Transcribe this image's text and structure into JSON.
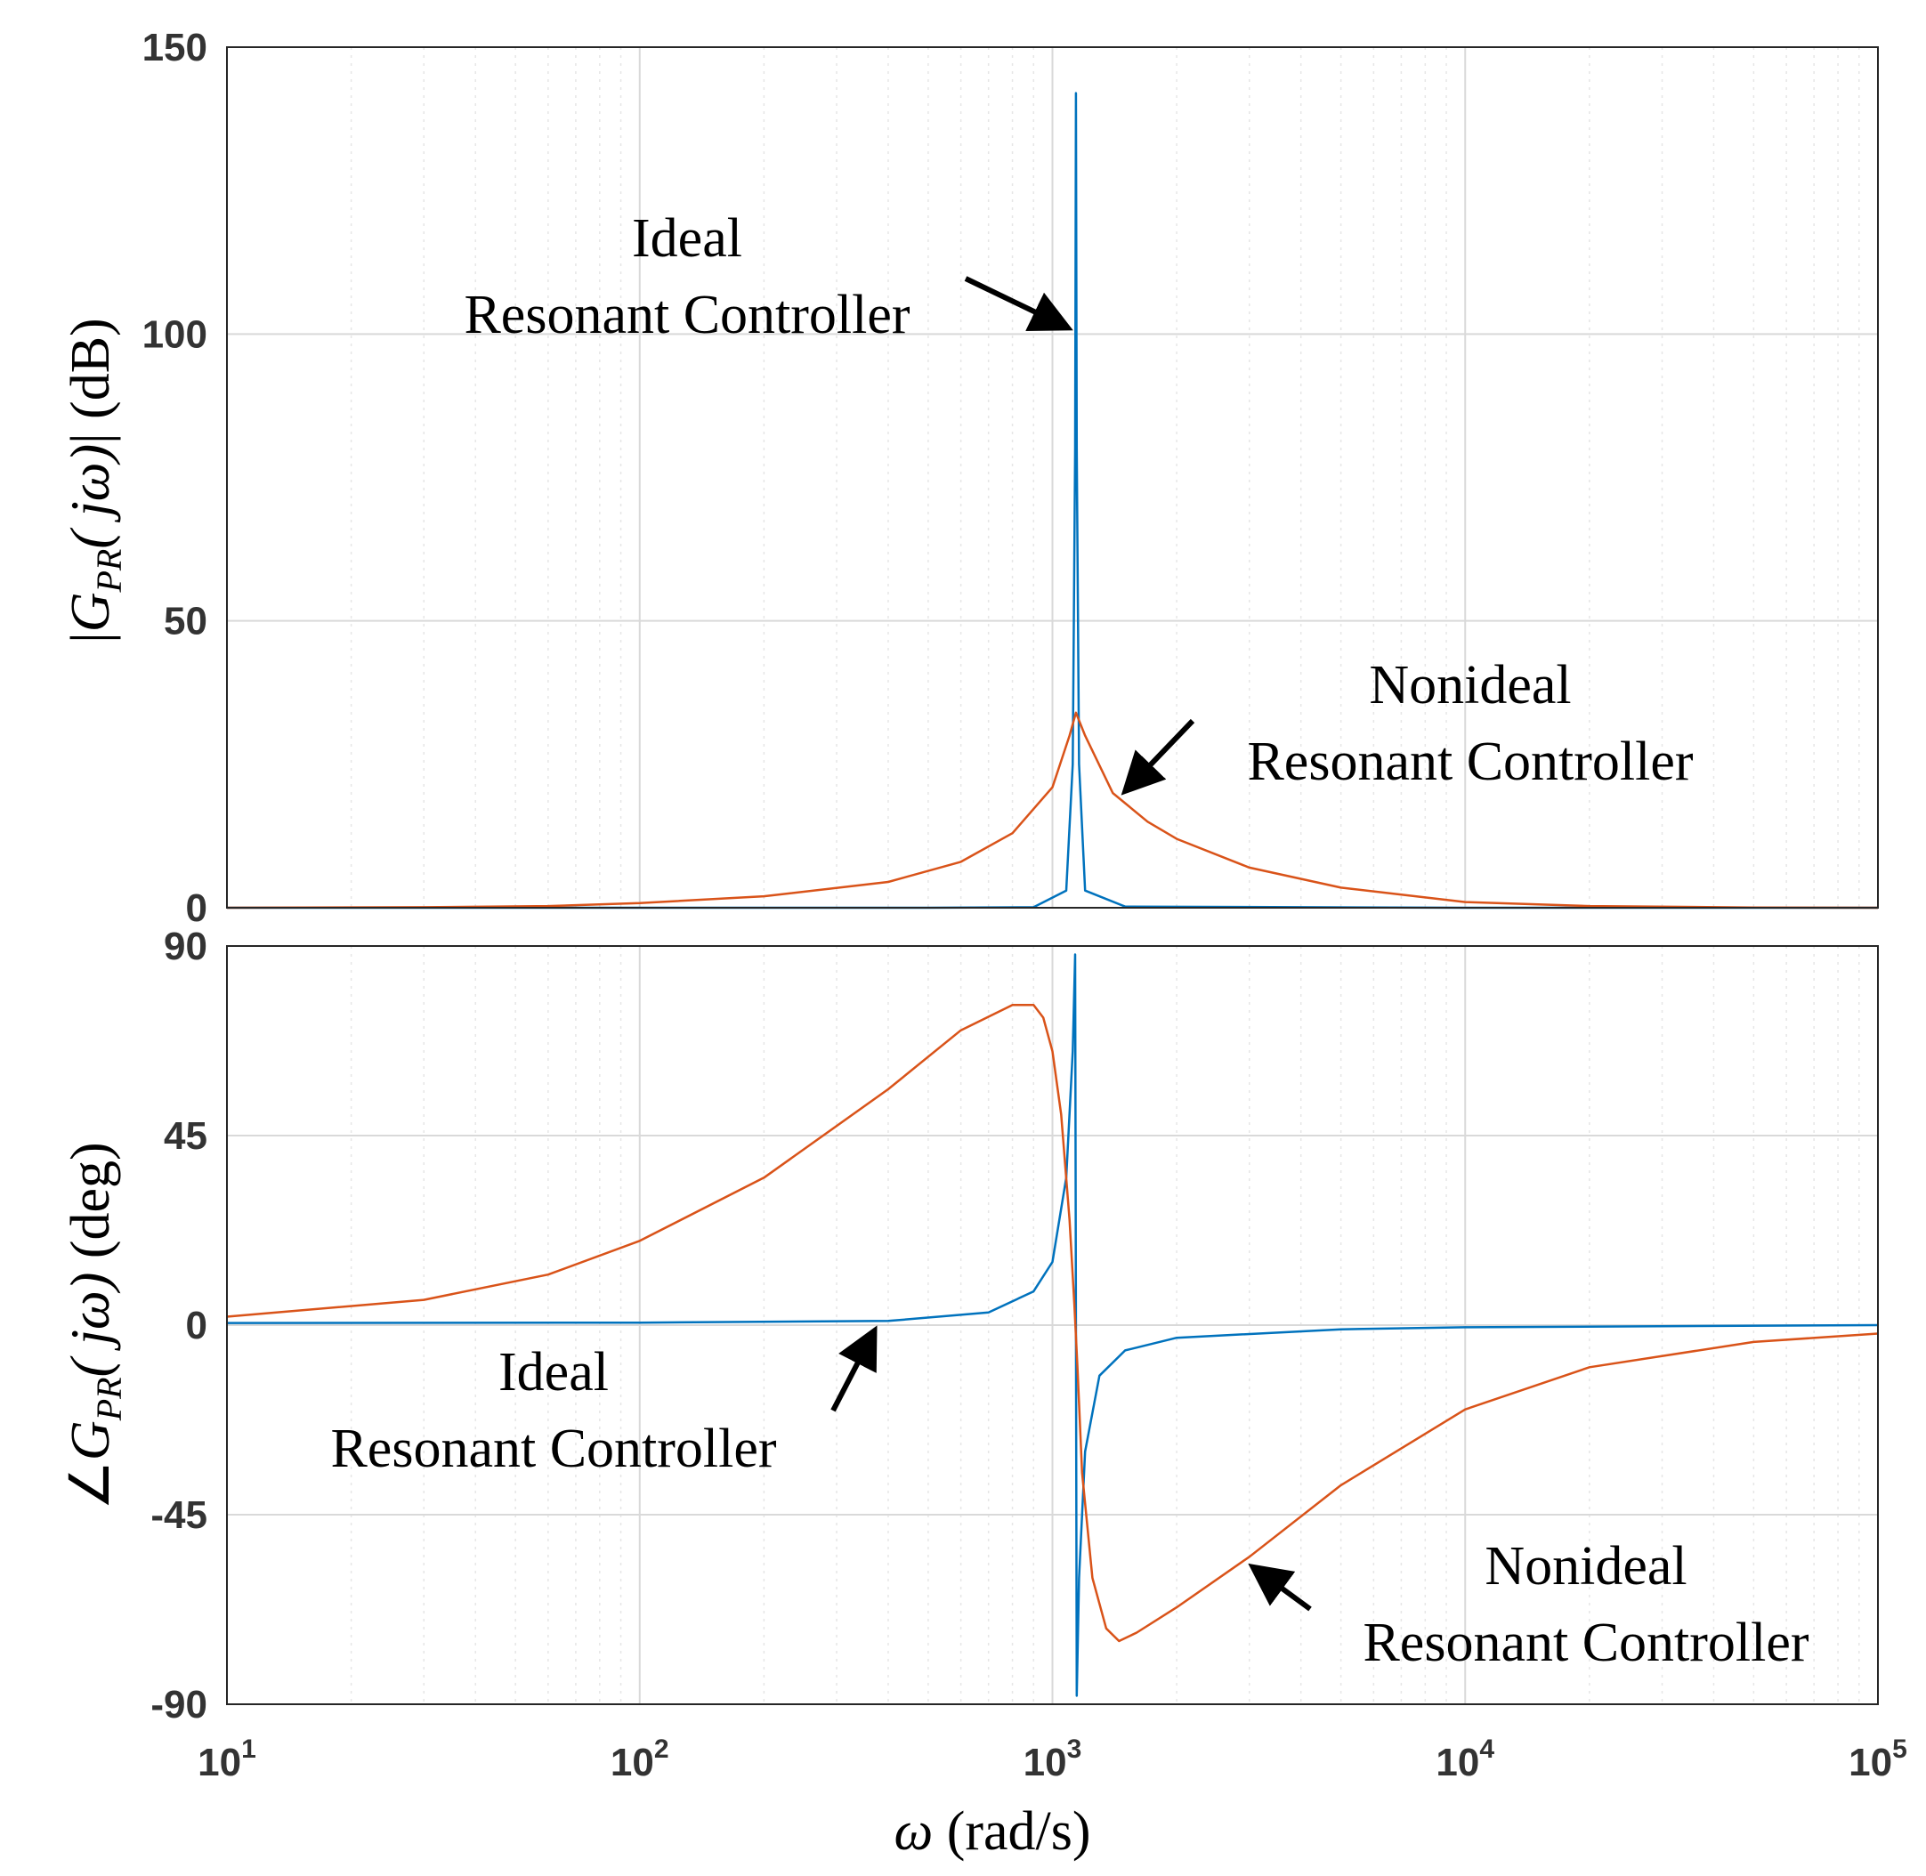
{
  "colors": {
    "ideal": "#0072BD",
    "nonideal": "#D95319",
    "arrow": "#000000"
  },
  "chart_data": [
    {
      "type": "line",
      "name": "magnitude",
      "xscale": "log",
      "xlim": [
        10,
        100000
      ],
      "ylim": [
        0,
        150
      ],
      "yticks": [
        0,
        50,
        100,
        150
      ],
      "ytick_labels": [
        "0",
        "50",
        "100",
        "150"
      ],
      "grid": true,
      "ylabel": "|G_PR(jω)| (dB)",
      "ylabel_parts": {
        "open_bar": "|",
        "G": "G",
        "sub": "PR",
        "jw": "( jω)",
        "close_bar": "|",
        "unit": "(dB)"
      },
      "series": [
        {
          "name": "Ideal Resonant Controller",
          "x": [
            10,
            100,
            500,
            900,
            1080,
            1120,
            1135,
            1140,
            1145,
            1160,
            1200,
            1500,
            10000,
            100000
          ],
          "y": [
            0,
            0,
            0,
            0.1,
            3,
            25,
            80,
            142,
            80,
            25,
            3,
            0.2,
            0,
            0
          ]
        },
        {
          "name": "Nonideal Resonant Controller",
          "x": [
            10,
            30,
            60,
            100,
            200,
            400,
            600,
            800,
            1000,
            1100,
            1140,
            1200,
            1400,
            1700,
            2000,
            3000,
            5000,
            10000,
            20000,
            50000,
            100000
          ],
          "y": [
            0,
            0.1,
            0.3,
            0.8,
            2,
            4.5,
            8,
            13,
            21,
            30,
            34,
            30,
            20,
            15,
            12,
            7,
            3.5,
            1,
            0.3,
            0.05,
            0
          ]
        }
      ],
      "annotations": [
        {
          "lines": [
            "Ideal",
            "Resonant Controller"
          ],
          "target": "Ideal Resonant Controller"
        },
        {
          "lines": [
            "Nonideal",
            "Resonant Controller"
          ],
          "target": "Nonideal Resonant Controller"
        }
      ]
    },
    {
      "type": "line",
      "name": "phase",
      "xscale": "log",
      "xlim": [
        10,
        100000
      ],
      "ylim": [
        -90,
        90
      ],
      "yticks": [
        -90,
        -45,
        0,
        45,
        90
      ],
      "ytick_labels": [
        "-90",
        "-45",
        "0",
        "45",
        "90"
      ],
      "grid": true,
      "ylabel": "∠G_PR(jω) (deg)",
      "ylabel_parts": {
        "angle": "∠",
        "G": "G",
        "sub": "PR",
        "jw": "( jω)",
        "unit": "(deg)"
      },
      "xlabel": "ω (rad/s)",
      "xlabel_parts": {
        "omega": "ω",
        "unit": "(rad/s)"
      },
      "xticks": [
        10,
        100,
        1000,
        10000,
        100000
      ],
      "xtick_labels": [
        {
          "base": "10",
          "exp": "1"
        },
        {
          "base": "10",
          "exp": "2"
        },
        {
          "base": "10",
          "exp": "3"
        },
        {
          "base": "10",
          "exp": "4"
        },
        {
          "base": "10",
          "exp": "5"
        }
      ],
      "series": [
        {
          "name": "Ideal Resonant Controller",
          "x": [
            10,
            100,
            400,
            700,
            900,
            1000,
            1080,
            1120,
            1135,
            1140,
            1145,
            1160,
            1200,
            1300,
            1500,
            2000,
            5000,
            10000,
            100000
          ],
          "y": [
            0.5,
            0.6,
            1,
            3,
            8,
            15,
            35,
            65,
            88,
            0,
            -88,
            -60,
            -30,
            -12,
            -6,
            -3,
            -1,
            -0.5,
            0
          ]
        },
        {
          "name": "Nonideal Resonant Controller",
          "x": [
            10,
            30,
            60,
            100,
            200,
            400,
            600,
            800,
            900,
            950,
            1000,
            1050,
            1100,
            1130,
            1150,
            1180,
            1250,
            1350,
            1450,
            1600,
            2000,
            3000,
            5000,
            10000,
            20000,
            50000,
            100000
          ],
          "y": [
            2,
            6,
            12,
            20,
            35,
            56,
            70,
            76,
            76,
            73,
            65,
            50,
            25,
            5,
            -10,
            -35,
            -60,
            -72,
            -75,
            -73,
            -67,
            -55,
            -38,
            -20,
            -10,
            -4,
            -2
          ]
        }
      ],
      "annotations": [
        {
          "lines": [
            "Ideal",
            "Resonant Controller"
          ],
          "target": "Ideal Resonant Controller"
        },
        {
          "lines": [
            "Nonideal",
            "Resonant Controller"
          ],
          "target": "Nonideal Resonant Controller"
        }
      ]
    }
  ]
}
